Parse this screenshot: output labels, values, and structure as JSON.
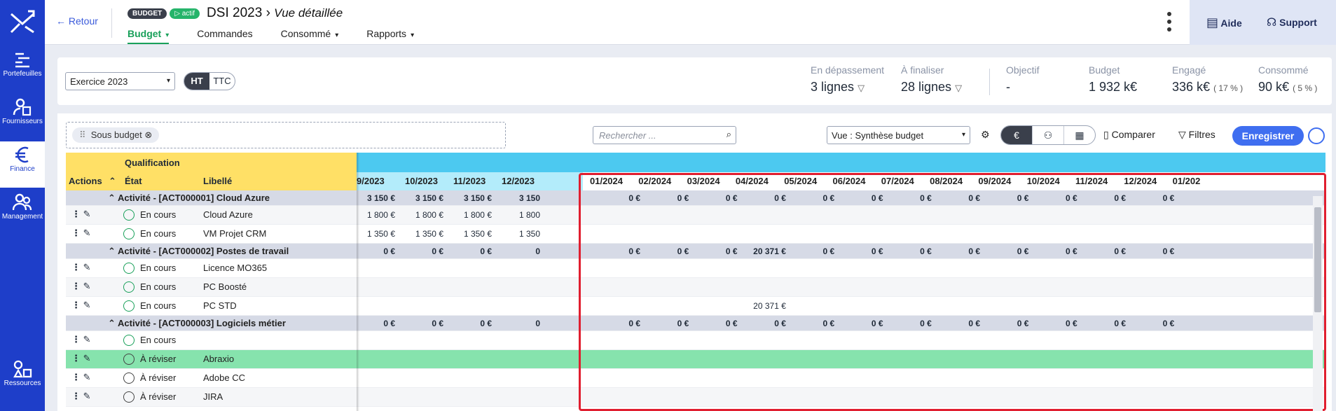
{
  "sidebar": {
    "items": [
      {
        "label": "Portefeuilles",
        "icon": "portfolio-icon"
      },
      {
        "label": "Fournisseurs",
        "icon": "supplier-icon"
      },
      {
        "label": "Finance",
        "icon": "euro-icon",
        "active": true
      },
      {
        "label": "Management",
        "icon": "people-icon"
      },
      {
        "label": "Ressources",
        "icon": "shapes-icon"
      }
    ]
  },
  "header": {
    "back_label": "Retour",
    "badge_budget": "BUDGET",
    "badge_status": "actif",
    "title": "DSI 2023",
    "subtitle": "Vue détaillée",
    "tabs": [
      {
        "label": "Budget",
        "active": true
      },
      {
        "label": "Commandes"
      },
      {
        "label": "Consommé"
      },
      {
        "label": "Rapports"
      }
    ],
    "help_label": "Aide",
    "support_label": "Support"
  },
  "filters": {
    "exercise": "Exercice 2023",
    "ht": "HT",
    "ttc": "TTC"
  },
  "kpis": [
    {
      "label": "En dépassement",
      "value": "3 lignes"
    },
    {
      "label": "À finaliser",
      "value": "28 lignes"
    },
    {
      "label": "Objectif",
      "value": "-"
    },
    {
      "label": "Budget",
      "value": "1 932 k€"
    },
    {
      "label": "Engagé",
      "value": "336 k€",
      "pct": "( 17 % )"
    },
    {
      "label": "Consommé",
      "value": "90 k€",
      "pct": "( 5 % )"
    }
  ],
  "toolbar": {
    "group_chip": "Sous budget",
    "search_placeholder": "Rechercher ...",
    "view_select": "Vue : Synthèse budget",
    "compare_label": "Comparer",
    "filters_label": "Filtres",
    "save_label": "Enregistrer"
  },
  "grid": {
    "qualification_header": "Qualification",
    "col_actions": "Actions",
    "col_state": "État",
    "col_label": "Libellé",
    "months_2023": [
      "9/2023",
      "10/2023",
      "11/2023",
      "12/2023"
    ],
    "months_2024": [
      "01/2024",
      "02/2024",
      "03/2024",
      "04/2024",
      "05/2024",
      "06/2024",
      "07/2024",
      "08/2024",
      "09/2024",
      "10/2024",
      "11/2024",
      "12/2024",
      "01/202"
    ],
    "rows": [
      {
        "type": "group",
        "label": "Activité - [ACT000001] Cloud Azure",
        "a23": [
          "3 150 €",
          "3 150 €",
          "3 150 €",
          "3 150"
        ],
        "a24": [
          "0 €",
          "0 €",
          "0 €",
          "0 €",
          "0 €",
          "0 €",
          "0 €",
          "0 €",
          "0 €",
          "0 €",
          "0 €",
          "0 €"
        ]
      },
      {
        "type": "item",
        "state": "En cours",
        "label": "Cloud Azure",
        "a23": [
          "1 800 €",
          "1 800 €",
          "1 800 €",
          "1 800"
        ],
        "a24": []
      },
      {
        "type": "item",
        "state": "En cours",
        "label": "VM Projet CRM",
        "a23": [
          "1 350 €",
          "1 350 €",
          "1 350 €",
          "1 350"
        ],
        "a24": []
      },
      {
        "type": "group",
        "label": "Activité - [ACT000002] Postes de travail",
        "a23": [
          "0 €",
          "0 €",
          "0 €",
          "0"
        ],
        "a24": [
          "0 €",
          "0 €",
          "0 €",
          "20 371 €",
          "0 €",
          "0 €",
          "0 €",
          "0 €",
          "0 €",
          "0 €",
          "0 €",
          "0 €"
        ]
      },
      {
        "type": "item",
        "state": "En cours",
        "label": "Licence MO365",
        "a23": [],
        "a24": []
      },
      {
        "type": "item",
        "state": "En cours",
        "label": "PC Boosté",
        "a23": [],
        "a24": []
      },
      {
        "type": "item",
        "state": "En cours",
        "label": "PC STD",
        "a23": [],
        "a24": [
          "",
          "",
          "",
          "20 371 €"
        ]
      },
      {
        "type": "group",
        "label": "Activité - [ACT000003] Logiciels métier",
        "a23": [
          "0 €",
          "0 €",
          "0 €",
          "0"
        ],
        "a24": [
          "0 €",
          "0 €",
          "0 €",
          "0 €",
          "0 €",
          "0 €",
          "0 €",
          "0 €",
          "0 €",
          "0 €",
          "0 €",
          "0 €"
        ]
      },
      {
        "type": "item",
        "state": "En cours",
        "label": "",
        "a23": [],
        "a24": []
      },
      {
        "type": "item",
        "state": "À réviser",
        "label": "Abraxio",
        "a23": [],
        "a24": [],
        "highlight": true
      },
      {
        "type": "item",
        "state": "À réviser",
        "label": "Adobe CC",
        "a23": [],
        "a24": []
      },
      {
        "type": "item",
        "state": "À réviser",
        "label": "JIRA",
        "a23": [],
        "a24": []
      }
    ]
  },
  "colors": {
    "sidebar": "#1e3ec9",
    "accent_green": "#19a05a",
    "primary": "#3f6ef0",
    "qual_yellow": "#ffe066",
    "time_blue": "#4cc9f0",
    "highlight_red": "#e01e2f"
  }
}
